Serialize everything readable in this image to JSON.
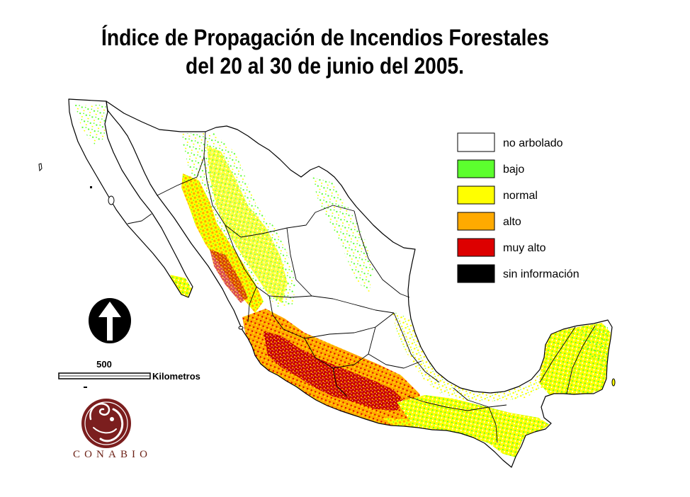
{
  "title": {
    "line1": "Índice de Propagación de Incendios Forestales",
    "line2": "del 20 al 30 de junio del 2005."
  },
  "legend": [
    {
      "label": "no arbolado",
      "color": "#ffffff"
    },
    {
      "label": "bajo",
      "color": "#5cff2e"
    },
    {
      "label": "normal",
      "color": "#ffff00"
    },
    {
      "label": "alto",
      "color": "#ffaa00"
    },
    {
      "label": "muy alto",
      "color": "#dd0000"
    },
    {
      "label": "sin información",
      "color": "#000000"
    }
  ],
  "scale_bar": {
    "value": "500",
    "unit": "Kilometros"
  },
  "icons": {
    "north_arrow": "north-arrow-icon",
    "logo": "conabio-logo-icon"
  },
  "logo": {
    "text": "CONABIO",
    "color": "#7b1e1e"
  }
}
